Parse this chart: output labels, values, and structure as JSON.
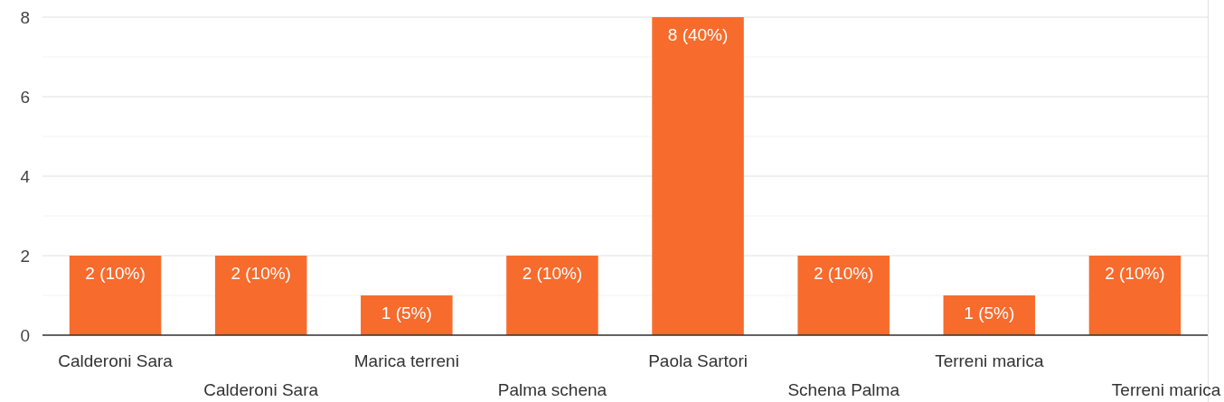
{
  "chart_data": {
    "type": "bar",
    "categories": [
      "Calderoni Sara",
      "Calderoni Sara",
      "Marica terreni",
      "Palma schena",
      "Paola Sartori",
      "Schena Palma",
      "Terreni marica",
      "Terreni marica"
    ],
    "values": [
      2,
      2,
      1,
      2,
      8,
      2,
      1,
      2
    ],
    "value_labels": [
      "2 (10%)",
      "2 (10%)",
      "1 (5%)",
      "2 (10%)",
      "8 (40%)",
      "2 (10%)",
      "1 (5%)",
      "2 (10%)"
    ],
    "color": "#f76b2d",
    "ylim": [
      0,
      8
    ],
    "yticks": [
      0,
      {
        "value": 1,
        "label": null
      },
      2,
      {
        "value": 3,
        "label": null
      },
      4,
      {
        "value": 5,
        "label": null
      },
      6,
      {
        "value": 7,
        "label": null
      },
      8
    ],
    "grid": true
  }
}
